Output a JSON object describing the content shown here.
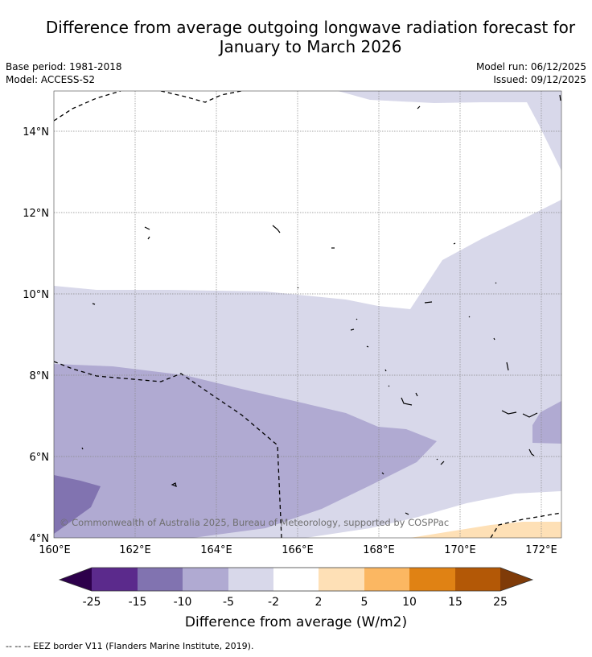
{
  "title_line1": "Difference from average outgoing longwave radiation forecast for",
  "title_line2": "January to March 2026",
  "base_period": "Base period: 1981-2018",
  "model": "Model: ACCESS-S2",
  "model_run": "Model run: 06/12/2025",
  "issued": "Issued: 09/12/2025",
  "map": {
    "lat_labels": [
      "14°N",
      "12°N",
      "10°N",
      "8°N",
      "6°N",
      "4°N"
    ],
    "lon_labels": [
      "160°E",
      "162°E",
      "164°E",
      "166°E",
      "168°E",
      "170°E",
      "172°E"
    ],
    "copyright": "© Commonwealth of Australia 2025, Bureau of Meteorology, supported by COSPPac"
  },
  "colorbar": {
    "ticks": [
      "-25",
      "-15",
      "-10",
      "-5",
      "-2",
      "2",
      "5",
      "10",
      "15",
      "25"
    ],
    "colors": [
      "#2d004b",
      "#5b2a8c",
      "#8173b0",
      "#b0aad2",
      "#d8d8ea",
      "#ffffff",
      "#fee0b6",
      "#fbb762",
      "#e08214",
      "#b35806",
      "#7f3b08"
    ],
    "label": "Difference from average (W/m2)"
  },
  "legend_line": "--  --  -- EEZ border V11 (Flanders Marine Institute, 2019)."
}
